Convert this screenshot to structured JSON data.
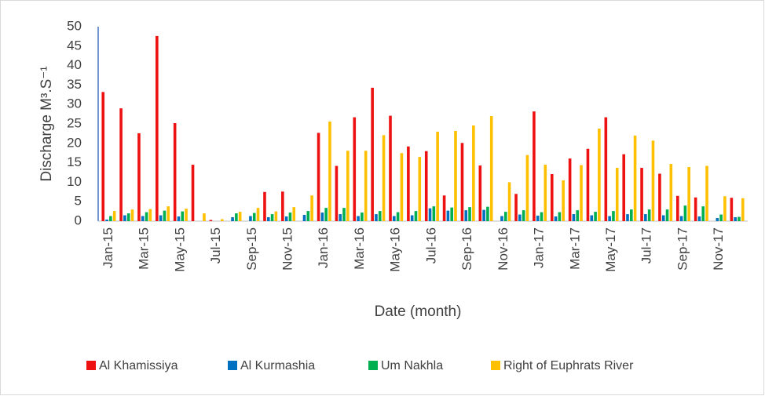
{
  "chart_data": {
    "type": "bar",
    "y_label": "Discharge M³.S⁻¹",
    "x_label": "Date (month)",
    "categories": [
      "Jan-15",
      null,
      "Mar-15",
      null,
      "May-15",
      null,
      "Jul-15",
      null,
      "Sep-15",
      null,
      "Nov-15",
      null,
      "Jan-16",
      null,
      "Mar-16",
      null,
      "May-16",
      null,
      "Jul-16",
      null,
      "Sep-16",
      null,
      "Nov-16",
      null,
      "Jan-17",
      null,
      "Mar-17",
      null,
      "May-17",
      null,
      "Jul-17",
      null,
      "Sep-17",
      null,
      "Nov-17",
      null
    ],
    "series": [
      {
        "name": "Al Khamissiya",
        "color": "#ee1111",
        "values": [
          33.2,
          29,
          22.6,
          47.6,
          25.2,
          14.5,
          0.3,
          0,
          0,
          7.5,
          7.6,
          0,
          22.7,
          14.2,
          26.7,
          34.3,
          27.1,
          19.2,
          18,
          6.6,
          20.1,
          14.3,
          0,
          7,
          28.2,
          12.1,
          16.1,
          18.6,
          26.7,
          17.2,
          13.7,
          12.2,
          6.5,
          6.1,
          0,
          6
        ]
      },
      {
        "name": "Al Kurmashia",
        "color": "#0070c0",
        "values": [
          0.4,
          1.5,
          1.3,
          1.5,
          1.2,
          0,
          0,
          1,
          1.3,
          1,
          1.2,
          1.6,
          2.2,
          1.8,
          1.3,
          1.8,
          1.3,
          1.5,
          3.3,
          2.7,
          2.8,
          2.9,
          1.3,
          1.7,
          1.4,
          1.2,
          1.8,
          1.5,
          1.3,
          1.8,
          1.8,
          1.5,
          1.3,
          1.2,
          0.8,
          1
        ]
      },
      {
        "name": "Um Nakhla",
        "color": "#00b050",
        "values": [
          1.3,
          2,
          2.3,
          2.7,
          2.5,
          0,
          0,
          2,
          2.1,
          1.8,
          2.2,
          2.6,
          3.4,
          3.4,
          2.2,
          2.6,
          2.3,
          2.6,
          3.8,
          3.5,
          3.6,
          3.7,
          2.4,
          2.8,
          2.3,
          2.3,
          2.8,
          2.4,
          2.6,
          3,
          3,
          3,
          4,
          3.8,
          1.7,
          1.1
        ]
      },
      {
        "name": "Right of Euphrats River",
        "color": "#ffc000",
        "values": [
          2.6,
          3,
          3.1,
          3.8,
          3.2,
          2,
          0.5,
          2.4,
          3.4,
          2.5,
          3.6,
          6.6,
          25.6,
          18.1,
          18.1,
          22.1,
          17.5,
          16.5,
          23,
          23.2,
          24.6,
          27,
          10,
          17,
          14.5,
          10.5,
          14.4,
          23.8,
          13.7,
          22,
          20.7,
          14.7,
          13.9,
          14.2,
          6.4,
          5.9
        ]
      }
    ],
    "ylim": [
      0,
      50
    ],
    "yticks": [
      0,
      5,
      10,
      15,
      20,
      25,
      30,
      35,
      40,
      45,
      50
    ]
  }
}
